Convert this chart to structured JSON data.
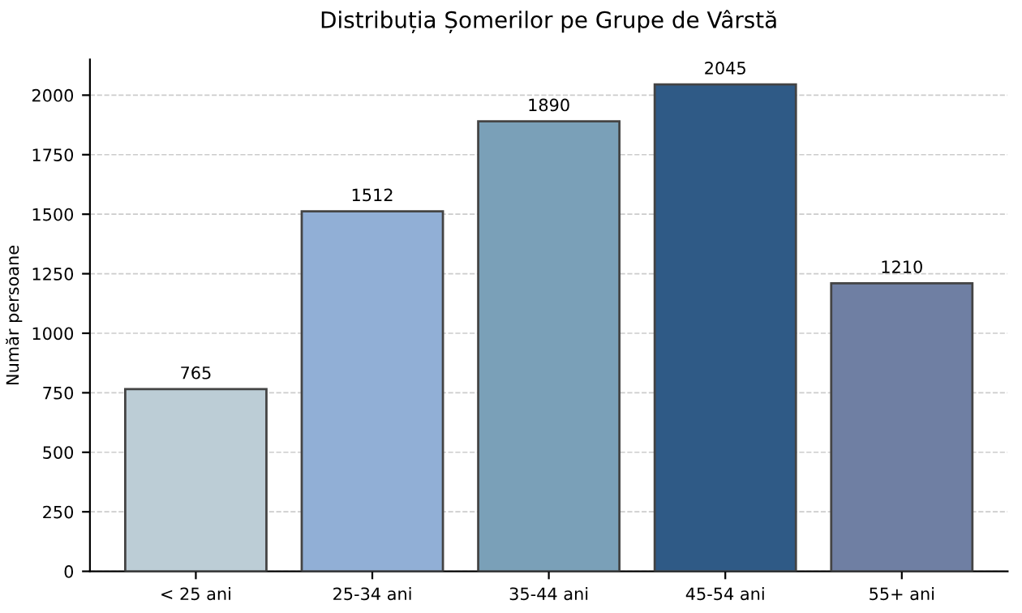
{
  "chart_data": {
    "type": "bar",
    "title": "Distribuția Șomerilor pe Grupe de Vârstă",
    "ylabel": "Număr persoane",
    "categories": [
      "< 25 ani",
      "25-34 ani",
      "35-44 ani",
      "45-54 ani",
      "55+ ani"
    ],
    "values": [
      765,
      1512,
      1890,
      2045,
      1210
    ],
    "colors": [
      "#bccdd6",
      "#91afd6",
      "#7aa0b8",
      "#2f5a86",
      "#6f7fa3"
    ],
    "ylim": [
      0,
      2150
    ],
    "yticks": [
      0,
      250,
      500,
      750,
      1000,
      1250,
      1500,
      1750,
      2000
    ],
    "grid": "y",
    "data_labels": true
  }
}
